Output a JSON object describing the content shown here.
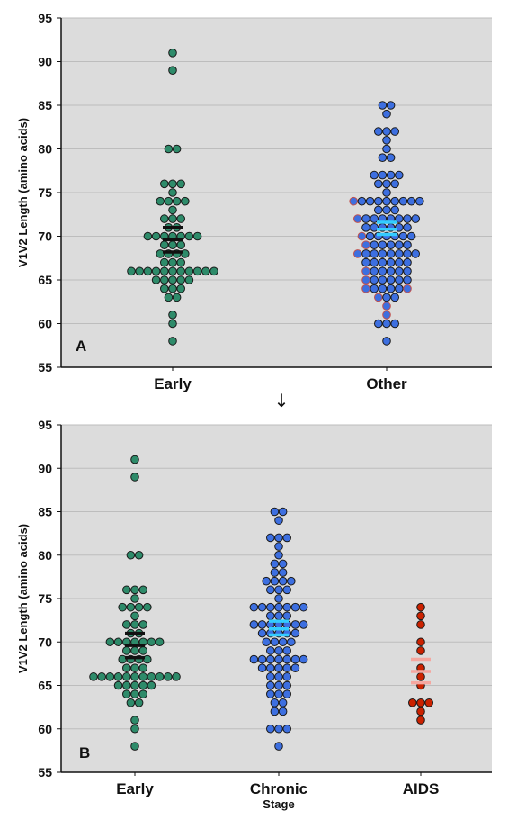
{
  "connector_arrow": "↓",
  "chart_data": [
    {
      "panel": "A",
      "type": "scatter",
      "subtype": "dot-strip",
      "ylabel": "V1V2 Length (amino acids)",
      "xlabel": "",
      "ylim": [
        55,
        95
      ],
      "yticks": [
        55,
        60,
        65,
        70,
        75,
        80,
        85,
        90,
        95
      ],
      "grid": true,
      "categories": [
        "Early",
        "Other"
      ],
      "series": [
        {
          "name": "Early",
          "color": "#2e8b6a",
          "values": [
            91,
            89,
            80,
            80,
            76,
            76,
            76,
            75,
            74,
            74,
            74,
            74,
            73,
            72,
            72,
            72,
            71,
            71,
            70,
            70,
            70,
            70,
            70,
            70,
            70,
            69,
            69,
            69,
            68,
            68,
            68,
            68,
            67,
            67,
            67,
            66,
            66,
            66,
            66,
            66,
            66,
            66,
            66,
            66,
            66,
            66,
            65,
            65,
            65,
            65,
            65,
            64,
            64,
            64,
            63,
            63,
            61,
            60,
            58
          ],
          "mean": 69.6,
          "ci": [
            68.2,
            71.0
          ],
          "mean_color": "#111111"
        },
        {
          "name": "Other",
          "color": "#3d6fe0",
          "values": [
            85,
            85,
            84,
            82,
            82,
            82,
            81,
            80,
            79,
            79,
            77,
            77,
            77,
            77,
            76,
            76,
            76,
            75,
            74,
            74,
            74,
            74,
            74,
            74,
            74,
            74,
            74,
            73,
            73,
            73,
            72,
            72,
            72,
            72,
            72,
            72,
            72,
            72,
            71,
            71,
            71,
            71,
            71,
            71,
            70,
            70,
            70,
            70,
            70,
            70,
            70,
            69,
            69,
            69,
            69,
            69,
            69,
            68,
            68,
            68,
            68,
            68,
            68,
            68,
            68,
            67,
            67,
            67,
            67,
            67,
            67,
            66,
            66,
            66,
            66,
            66,
            66,
            65,
            65,
            65,
            65,
            65,
            65,
            64,
            64,
            64,
            64,
            64,
            64,
            63,
            63,
            63,
            62,
            61,
            60,
            60,
            60,
            58
          ],
          "highlight_values": [
            74,
            72,
            70,
            69,
            68,
            66,
            65,
            64,
            64,
            63,
            62,
            61
          ],
          "highlight_color": "#c0504d",
          "mean": 70.8,
          "ci": [
            70.2,
            71.6
          ],
          "mean_color": "#33ccff"
        }
      ],
      "panel_label": "A"
    },
    {
      "panel": "B",
      "type": "scatter",
      "subtype": "dot-strip",
      "ylabel": "V1V2 Length (amino acids)",
      "xlabel": "Stage",
      "ylim": [
        55,
        95
      ],
      "yticks": [
        55,
        60,
        65,
        70,
        75,
        80,
        85,
        90,
        95
      ],
      "grid": true,
      "categories": [
        "Early",
        "Chronic",
        "AIDS"
      ],
      "series": [
        {
          "name": "Early",
          "color": "#2e8b6a",
          "values": [
            91,
            89,
            80,
            80,
            76,
            76,
            76,
            75,
            74,
            74,
            74,
            74,
            73,
            72,
            72,
            72,
            71,
            71,
            70,
            70,
            70,
            70,
            70,
            70,
            70,
            69,
            69,
            69,
            68,
            68,
            68,
            68,
            67,
            67,
            67,
            66,
            66,
            66,
            66,
            66,
            66,
            66,
            66,
            66,
            66,
            66,
            65,
            65,
            65,
            65,
            65,
            64,
            64,
            64,
            63,
            63,
            61,
            60,
            58
          ],
          "mean": 69.6,
          "ci": [
            68.2,
            71.0
          ],
          "mean_color": "#111111"
        },
        {
          "name": "Chronic",
          "color": "#3d6fe0",
          "values": [
            85,
            85,
            84,
            82,
            82,
            82,
            81,
            80,
            79,
            79,
            78,
            78,
            77,
            77,
            77,
            77,
            76,
            76,
            76,
            75,
            74,
            74,
            74,
            74,
            74,
            74,
            74,
            73,
            73,
            73,
            72,
            72,
            72,
            72,
            72,
            72,
            72,
            71,
            71,
            71,
            71,
            71,
            70,
            70,
            70,
            70,
            69,
            69,
            69,
            68,
            68,
            68,
            68,
            68,
            68,
            68,
            67,
            67,
            67,
            67,
            67,
            66,
            66,
            66,
            65,
            65,
            65,
            64,
            64,
            64,
            63,
            63,
            62,
            62,
            60,
            60,
            60,
            58
          ],
          "mean": 71.5,
          "ci": [
            70.8,
            72.4
          ],
          "mean_color": "#33ccff"
        },
        {
          "name": "AIDS",
          "color": "#cc2200",
          "values": [
            74,
            73,
            72,
            70,
            69,
            67,
            66,
            65,
            63,
            63,
            63,
            62,
            61
          ],
          "mean": 66.6,
          "ci": [
            65.3,
            68.0
          ],
          "mean_color": "#f4a7a0"
        }
      ],
      "panel_label": "B"
    }
  ]
}
